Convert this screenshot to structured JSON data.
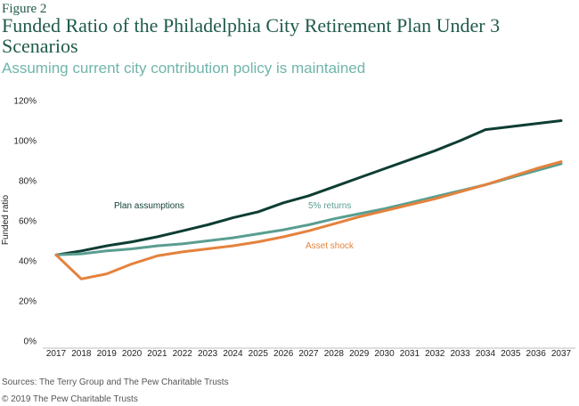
{
  "header": {
    "figure_label": "Figure 2",
    "title": "Funded Ratio of the Philadelphia City Retirement Plan Under 3 Scenarios",
    "subtitle": "Assuming current city contribution policy is maintained"
  },
  "footer": {
    "source": "Sources: The Terry Group and The Pew Charitable Trusts",
    "copyright": "© 2019 The Pew Charitable Trusts"
  },
  "chart_data": {
    "type": "line",
    "title": "Funded Ratio of the Philadelphia City Retirement Plan Under 3 Scenarios",
    "subtitle": "Assuming current city contribution policy is maintained",
    "xlabel": "",
    "ylabel": "Funded ratio",
    "x": [
      "2017",
      "2018",
      "2019",
      "2020",
      "2021",
      "2022",
      "2023",
      "2024",
      "2025",
      "2026",
      "2027",
      "2028",
      "2029",
      "2030",
      "2031",
      "2032",
      "2033",
      "2034",
      "2035",
      "2036",
      "2037"
    ],
    "ylim": [
      0,
      120
    ],
    "yticks": [
      0,
      20,
      40,
      60,
      80,
      100,
      120
    ],
    "ytick_labels": [
      "0%",
      "20%",
      "40%",
      "60%",
      "80%",
      "100%",
      "120%"
    ],
    "grid": false,
    "series": [
      {
        "name": "Plan assumptions",
        "color": "#0e3d33",
        "values": [
          43,
          45,
          47.5,
          49.5,
          52,
          55,
          58,
          61.5,
          64.5,
          69,
          72.5,
          77,
          81.5,
          86,
          90.5,
          95,
          100,
          105.5,
          107,
          108.5,
          110
        ]
      },
      {
        "name": "5% returns",
        "color": "#5a9e91",
        "values": [
          43,
          43.5,
          45,
          46,
          47.5,
          48.5,
          50,
          51.5,
          53.5,
          55.5,
          58,
          61,
          63.5,
          66,
          69,
          72,
          75,
          78,
          81.5,
          85,
          88.5
        ]
      },
      {
        "name": "Asset shock",
        "color": "#e5823d",
        "values": [
          43,
          31,
          33.5,
          38.5,
          42.5,
          44.5,
          46,
          47.5,
          49.5,
          52,
          55,
          58.5,
          62,
          65,
          68,
          71,
          74.5,
          78,
          82,
          86,
          89.5
        ]
      }
    ],
    "annotations": [
      {
        "text": "Plan assumptions",
        "color": "#0e3d33"
      },
      {
        "text": "5% returns",
        "color": "#5a9e91"
      },
      {
        "text": "Asset shock",
        "color": "#e5823d"
      }
    ]
  }
}
